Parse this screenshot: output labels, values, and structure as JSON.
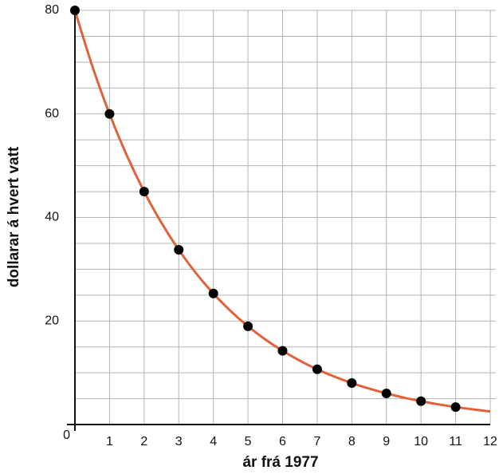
{
  "chart_data": {
    "type": "scatter",
    "xlabel": "ár frá 1977",
    "ylabel": "dollarar á hvert vatt",
    "xlim": [
      0,
      12
    ],
    "ylim": [
      0,
      80
    ],
    "xticks": [
      1,
      2,
      3,
      4,
      5,
      6,
      7,
      8,
      9,
      10,
      11,
      12
    ],
    "yticks": [
      0,
      20,
      40,
      60,
      80
    ],
    "xgrid": [
      0,
      1,
      2,
      3,
      4,
      5,
      6,
      7,
      8,
      9,
      10,
      11,
      12
    ],
    "ygrid": [
      5,
      10,
      15,
      20,
      25,
      30,
      35,
      40,
      45,
      50,
      55,
      60,
      65,
      70,
      75,
      80
    ],
    "grid": true,
    "series": [
      {
        "type": "line",
        "color": "#e0623a",
        "x": [
          0,
          0.5,
          1,
          1.5,
          2,
          2.5,
          3,
          3.5,
          4,
          4.5,
          5,
          5.5,
          6,
          6.5,
          7,
          7.5,
          8,
          8.5,
          9,
          9.5,
          10,
          10.5,
          11,
          11.5,
          12
        ],
        "values": [
          80,
          69.28,
          60,
          51.96,
          45,
          38.97,
          33.75,
          29.23,
          25.31,
          21.92,
          18.98,
          16.44,
          14.24,
          12.33,
          10.68,
          9.25,
          8.01,
          6.94,
          6.01,
          5.2,
          4.51,
          3.9,
          3.38,
          2.93,
          2.53
        ]
      },
      {
        "type": "scatter",
        "color": "#000000",
        "x": [
          0,
          1,
          2,
          3,
          4,
          5,
          6,
          7,
          8,
          9,
          10,
          11
        ],
        "values": [
          80,
          60,
          45,
          33.75,
          25.31,
          18.98,
          14.24,
          10.68,
          8.01,
          6.01,
          4.51,
          3.38
        ]
      }
    ]
  }
}
